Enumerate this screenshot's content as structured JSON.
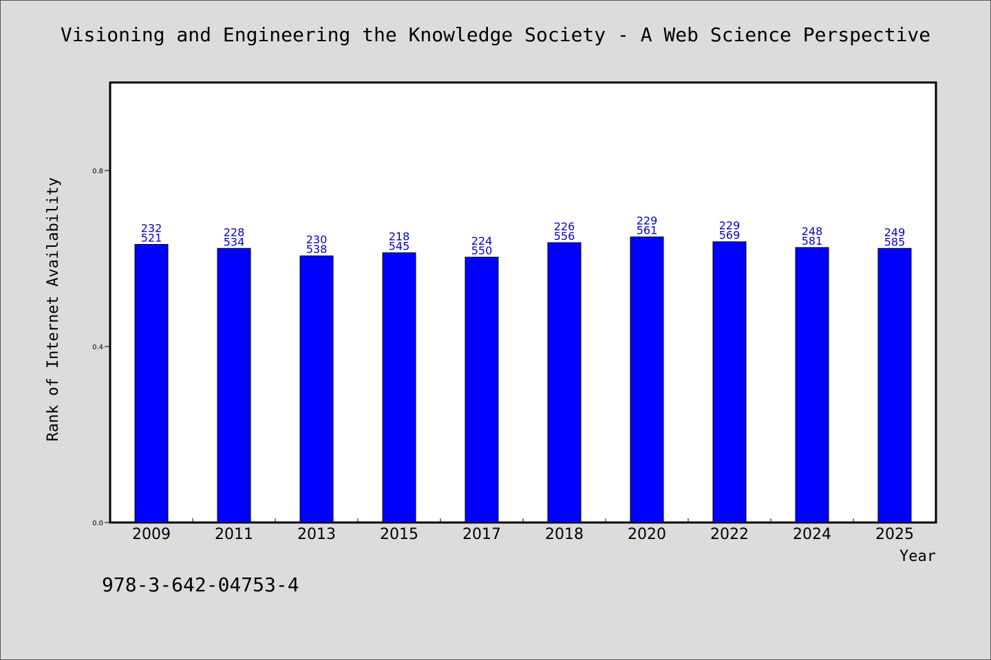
{
  "title": "Visioning and Engineering the Knowledge Society - A Web Science Perspective",
  "footer": {
    "code": "978-3-642-04753-4"
  },
  "colors": {
    "background": "#dcdcdc",
    "plot_background": "#ffffff",
    "bar_fill": "#0000ff",
    "bar_label": "#0000cc"
  },
  "chart_data": {
    "type": "bar",
    "title": "Visioning and Engineering the Knowledge Society - A Web Science Perspective",
    "xlabel": "Year",
    "ylabel": "Rank of Internet Availability",
    "categories": [
      "2009",
      "2011",
      "2013",
      "2015",
      "2017",
      "2018",
      "2020",
      "2022",
      "2024",
      "2025"
    ],
    "values": [
      0.632,
      0.623,
      0.606,
      0.613,
      0.603,
      0.636,
      0.649,
      0.638,
      0.625,
      0.623
    ],
    "bar_labels": [
      [
        "232",
        "521"
      ],
      [
        "228",
        "534"
      ],
      [
        "230",
        "538"
      ],
      [
        "218",
        "545"
      ],
      [
        "224",
        "550"
      ],
      [
        "226",
        "556"
      ],
      [
        "229",
        "561"
      ],
      [
        "229",
        "569"
      ],
      [
        "248",
        "581"
      ],
      [
        "249",
        "585"
      ]
    ],
    "ylim": [
      0,
      1.0
    ],
    "yticks": [
      "0.0",
      "0.4",
      "0.8"
    ],
    "grid": false,
    "legend": "none"
  }
}
